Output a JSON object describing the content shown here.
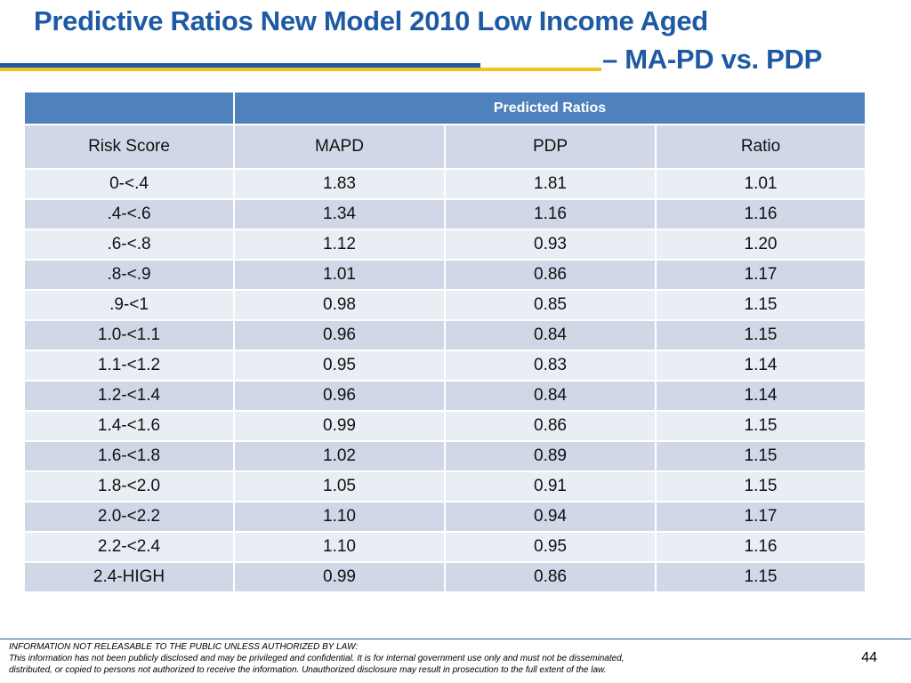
{
  "slide": {
    "title_line1": "Predictive Ratios New Model 2010 Low Income Aged",
    "title_line2": "– MA-PD vs. PDP",
    "page_number": "44"
  },
  "table": {
    "group_header": "Predicted Ratios",
    "columns": [
      "Risk Score",
      "MAPD",
      "PDP",
      "Ratio"
    ],
    "rows": [
      [
        "0-<.4",
        "1.83",
        "1.81",
        "1.01"
      ],
      [
        ".4-<.6",
        "1.34",
        "1.16",
        "1.16"
      ],
      [
        ".6-<.8",
        "1.12",
        "0.93",
        "1.20"
      ],
      [
        ".8-<.9",
        "1.01",
        "0.86",
        "1.17"
      ],
      [
        ".9-<1",
        "0.98",
        "0.85",
        "1.15"
      ],
      [
        "1.0-<1.1",
        "0.96",
        "0.84",
        "1.15"
      ],
      [
        "1.1-<1.2",
        "0.95",
        "0.83",
        "1.14"
      ],
      [
        "1.2-<1.4",
        "0.96",
        "0.84",
        "1.14"
      ],
      [
        "1.4-<1.6",
        "0.99",
        "0.86",
        "1.15"
      ],
      [
        "1.6-<1.8",
        "1.02",
        "0.89",
        "1.15"
      ],
      [
        "1.8-<2.0",
        "1.05",
        "0.91",
        "1.15"
      ],
      [
        "2.0-<2.2",
        "1.10",
        "0.94",
        "1.17"
      ],
      [
        "2.2-<2.4",
        "1.10",
        "0.95",
        "1.16"
      ],
      [
        "2.4-HIGH",
        "0.99",
        "0.86",
        "1.15"
      ]
    ]
  },
  "footer": {
    "line1": "INFORMATION NOT RELEASABLE TO THE PUBLIC UNLESS AUTHORIZED BY LAW:",
    "line2": "This information has not been publicly disclosed and may be privileged and confidential.  It is for internal government use only and must not be disseminated,",
    "line3": "distributed, or copied to persons not authorized to receive the information.  Unauthorized disclosure may result in prosecution to the full extent of the law."
  },
  "colors": {
    "title": "#1d5aa3",
    "accent_gold": "#f2c31a",
    "header": "#4f81bd",
    "row_dark": "#d0d8e8",
    "row_light": "#e9edf4"
  }
}
